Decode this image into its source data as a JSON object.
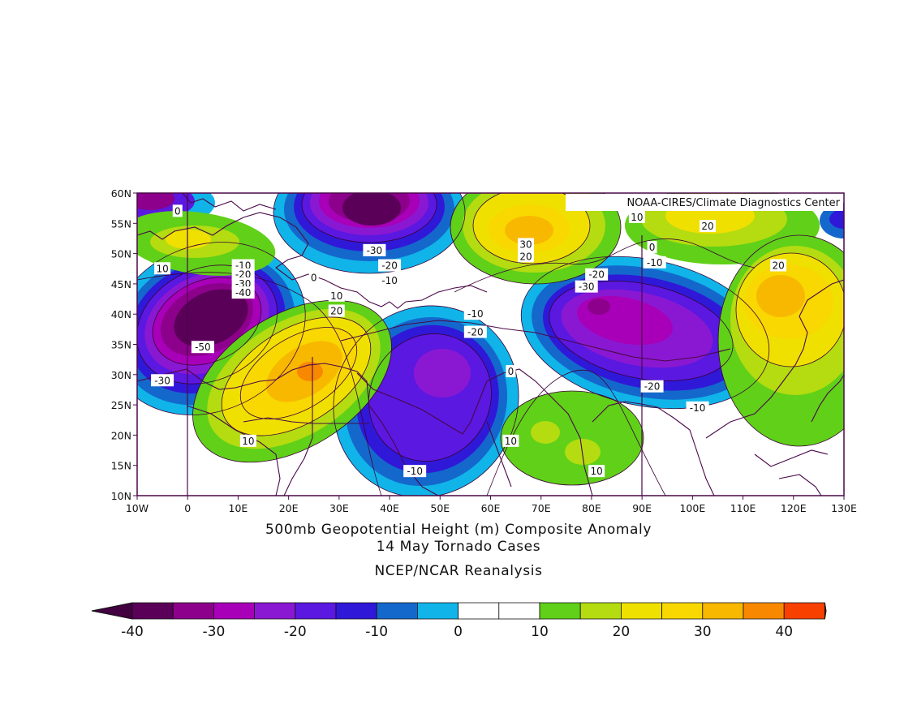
{
  "credit": "NOAA-CIRES/Climate Diagnostics Center",
  "title_line1": "500mb Geopotential Height (m) Composite Anomaly",
  "title_line2": "14 May Tornado Cases",
  "source": "NCEP/NCAR Reanalysis",
  "lat_labels": [
    "60N",
    "55N",
    "50N",
    "45N",
    "40N",
    "35N",
    "30N",
    "25N",
    "20N",
    "15N",
    "10N"
  ],
  "lon_labels": [
    "10W",
    "0",
    "10E",
    "20E",
    "30E",
    "40E",
    "50E",
    "60E",
    "70E",
    "80E",
    "90E",
    "100E",
    "110E",
    "120E",
    "130E"
  ],
  "colorbar": {
    "ticks": [
      "-40",
      "-30",
      "-20",
      "-10",
      "0",
      "10",
      "20",
      "30",
      "40"
    ],
    "colors": [
      "#5a0058",
      "#8c008c",
      "#a800b8",
      "#8a18d2",
      "#5a18e0",
      "#3018d8",
      "#1468cc",
      "#10b4e8",
      "#ffffff",
      "#ffffff",
      "#60d018",
      "#b4dc10",
      "#f0e000",
      "#f8d800",
      "#f8b800",
      "#f88800",
      "#f84000"
    ],
    "under_color": "#420040",
    "over_color": "#c80000"
  },
  "contour_labels": [
    {
      "text": "0",
      "lon": -2,
      "lat": 57
    },
    {
      "text": "-30",
      "lon": 37,
      "lat": 50.5
    },
    {
      "text": "-20",
      "lon": 40,
      "lat": 48
    },
    {
      "text": "-10",
      "lon": 40,
      "lat": 45.5
    },
    {
      "text": "10",
      "lon": -5,
      "lat": 47.5
    },
    {
      "text": "-10",
      "lon": 11,
      "lat": 48
    },
    {
      "text": "-20",
      "lon": 11,
      "lat": 46.5
    },
    {
      "text": "-30",
      "lon": 11,
      "lat": 45
    },
    {
      "text": "-40",
      "lon": 11,
      "lat": 43.5
    },
    {
      "text": "0",
      "lon": 25,
      "lat": 46
    },
    {
      "text": "10",
      "lon": 29.5,
      "lat": 43
    },
    {
      "text": "20",
      "lon": 29.5,
      "lat": 40.5
    },
    {
      "text": "-50",
      "lon": 3,
      "lat": 34.5
    },
    {
      "text": "-30",
      "lon": -5,
      "lat": 29
    },
    {
      "text": "10",
      "lon": 12,
      "lat": 19
    },
    {
      "text": "30",
      "lon": 67,
      "lat": 51.5
    },
    {
      "text": "20",
      "lon": 67,
      "lat": 49.5
    },
    {
      "text": "10",
      "lon": 89,
      "lat": 56
    },
    {
      "text": "20",
      "lon": 103,
      "lat": 54.5
    },
    {
      "text": "0",
      "lon": 92,
      "lat": 51
    },
    {
      "text": "-10",
      "lon": 92.5,
      "lat": 48.5
    },
    {
      "text": "-20",
      "lon": 81,
      "lat": 46.5
    },
    {
      "text": "-30",
      "lon": 79,
      "lat": 44.5
    },
    {
      "text": "20",
      "lon": 117,
      "lat": 48
    },
    {
      "text": "-10",
      "lon": 57,
      "lat": 40
    },
    {
      "text": "-20",
      "lon": 57,
      "lat": 37
    },
    {
      "text": "0",
      "lon": 64,
      "lat": 30.5
    },
    {
      "text": "-20",
      "lon": 92,
      "lat": 28
    },
    {
      "text": "-10",
      "lon": 101,
      "lat": 24.5
    },
    {
      "text": "10",
      "lon": 64,
      "lat": 19
    },
    {
      "text": "10",
      "lon": 81,
      "lat": 14
    },
    {
      "text": "-10",
      "lon": 45,
      "lat": 14
    }
  ]
}
